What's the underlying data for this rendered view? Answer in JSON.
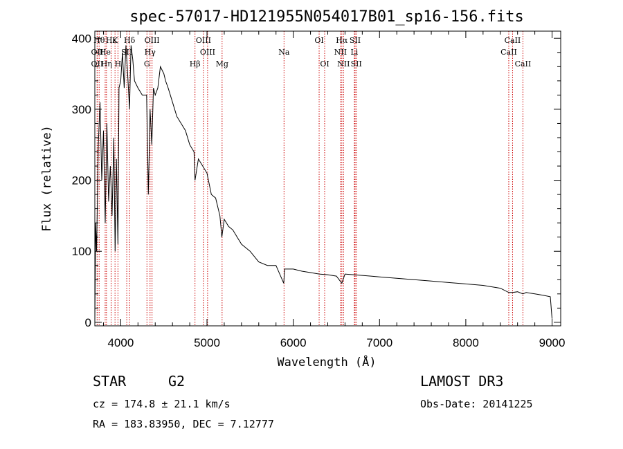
{
  "chart_data": {
    "type": "line",
    "title": "spec-57017-HD121955N054017B01_sp16-156.fits",
    "xlabel": "Wavelength (Å)",
    "ylabel": "Flux (relative)",
    "xlim": [
      3700,
      9100
    ],
    "ylim": [
      -5,
      410
    ],
    "x_ticks": [
      4000,
      5000,
      6000,
      7000,
      8000,
      9000
    ],
    "y_ticks": [
      0,
      100,
      200,
      300,
      400
    ],
    "grid": false,
    "series": [
      {
        "name": "spectrum",
        "x": [
          3700,
          3710,
          3720,
          3740,
          3760,
          3780,
          3800,
          3820,
          3840,
          3860,
          3880,
          3900,
          3920,
          3935,
          3950,
          3968,
          3980,
          4000,
          4020,
          4040,
          4060,
          4080,
          4102,
          4120,
          4140,
          4160,
          4200,
          4250,
          4300,
          4320,
          4340,
          4360,
          4380,
          4400,
          4430,
          4460,
          4500,
          4520,
          4550,
          4600,
          4650,
          4700,
          4750,
          4800,
          4850,
          4861,
          4900,
          4950,
          5000,
          5050,
          5100,
          5150,
          5172,
          5200,
          5250,
          5300,
          5350,
          5400,
          5450,
          5500,
          5600,
          5700,
          5800,
          5890,
          5900,
          6000,
          6100,
          6200,
          6300,
          6400,
          6500,
          6563,
          6600,
          6700,
          6800,
          6900,
          7000,
          7200,
          7400,
          7600,
          7800,
          8000,
          8200,
          8400,
          8498,
          8542,
          8600,
          8662,
          8700,
          8800,
          8900,
          8980,
          9000
        ],
        "y": [
          0,
          140,
          100,
          250,
          310,
          200,
          270,
          140,
          280,
          170,
          220,
          150,
          260,
          100,
          230,
          110,
          330,
          340,
          380,
          330,
          390,
          350,
          300,
          390,
          370,
          340,
          330,
          320,
          320,
          180,
          300,
          250,
          330,
          320,
          330,
          360,
          350,
          340,
          330,
          310,
          290,
          280,
          270,
          250,
          240,
          200,
          230,
          220,
          210,
          180,
          175,
          150,
          120,
          145,
          135,
          130,
          120,
          110,
          105,
          100,
          85,
          80,
          80,
          55,
          75,
          75,
          72,
          70,
          68,
          67,
          65,
          55,
          68,
          67,
          66,
          65,
          64,
          62,
          60,
          58,
          56,
          54,
          52,
          48,
          42,
          42,
          43,
          40,
          42,
          40,
          38,
          36,
          5
        ]
      }
    ],
    "line_markers": [
      {
        "label": "Hθ",
        "wavelength": 3750,
        "row": 0
      },
      {
        "label": "Hε",
        "wavelength": 3889,
        "row": 0
      },
      {
        "label": "K",
        "wavelength": 3934,
        "row": 0
      },
      {
        "label": "Hδ",
        "wavelength": 4102,
        "row": 0
      },
      {
        "label": "OIII",
        "wavelength": 4363,
        "row": 0
      },
      {
        "label": "OIII",
        "wavelength": 4959,
        "row": 0
      },
      {
        "label": "OI",
        "wavelength": 6300,
        "row": 0
      },
      {
        "label": "Hα",
        "wavelength": 6563,
        "row": 0
      },
      {
        "label": "SII",
        "wavelength": 6717,
        "row": 0
      },
      {
        "label": "CaII",
        "wavelength": 8542,
        "row": 0
      },
      {
        "label": "OII",
        "wavelength": 3727,
        "row": 1
      },
      {
        "label": "He",
        "wavelength": 3820,
        "row": 1
      },
      {
        "label": "SII",
        "wavelength": 4070,
        "row": 1
      },
      {
        "label": "Hγ",
        "wavelength": 4340,
        "row": 1
      },
      {
        "label": "OIII",
        "wavelength": 5007,
        "row": 1
      },
      {
        "label": "Na",
        "wavelength": 5893,
        "row": 1
      },
      {
        "label": "NII",
        "wavelength": 6548,
        "row": 1
      },
      {
        "label": "Li",
        "wavelength": 6708,
        "row": 1
      },
      {
        "label": "CaII",
        "wavelength": 8498,
        "row": 1
      },
      {
        "label": "OII",
        "wavelength": 3727,
        "row": 2
      },
      {
        "label": "Hη",
        "wavelength": 3835,
        "row": 2
      },
      {
        "label": "H",
        "wavelength": 3968,
        "row": 2
      },
      {
        "label": "G",
        "wavelength": 4304,
        "row": 2
      },
      {
        "label": "Hβ",
        "wavelength": 4861,
        "row": 2
      },
      {
        "label": "Mg",
        "wavelength": 5175,
        "row": 2
      },
      {
        "label": "OI",
        "wavelength": 6364,
        "row": 2
      },
      {
        "label": "NII",
        "wavelength": 6583,
        "row": 2
      },
      {
        "label": "SII",
        "wavelength": 6731,
        "row": 2
      },
      {
        "label": "CaII",
        "wavelength": 8662,
        "row": 2
      }
    ]
  },
  "info": {
    "object_class": "STAR",
    "subclass": "G2",
    "survey": "LAMOST DR3",
    "redshift": "cz = 174.8 ± 21.1 km/s",
    "obs_date": "Obs-Date: 20141225",
    "coords": "RA = 183.83950, DEC =   7.12777"
  },
  "colors": {
    "spectrum": "#000000",
    "marker_line": "#cc0000",
    "axis": "#000000"
  }
}
